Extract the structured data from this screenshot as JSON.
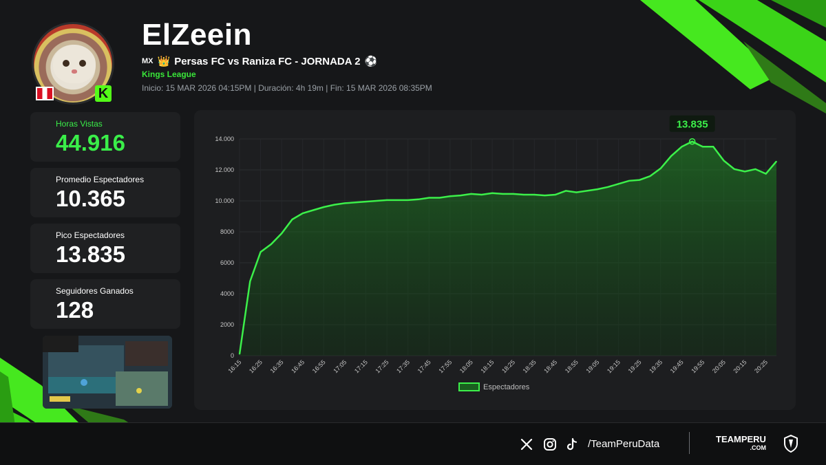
{
  "header": {
    "title": "ElZeein",
    "country_code": "MX",
    "match": "Persas FC vs Raniza FC - JORNADA 2",
    "league": "Kings League",
    "meta": "Inicio: 15 MAR 2026 04:15PM  |  Duración: 4h 19m  |  Fin: 15 MAR 2026 08:35PM",
    "kick_letter": "K"
  },
  "stats": [
    {
      "label": "Horas Vistas",
      "value": "44.916"
    },
    {
      "label": "Promedio Espectadores",
      "value": "10.365"
    },
    {
      "label": "Pico Espectadores",
      "value": "13.835"
    },
    {
      "label": "Seguidores Ganados",
      "value": "128"
    }
  ],
  "colors": {
    "accent": "#39e639",
    "background": "#161719",
    "panel": "#1d1e20",
    "line": "#3cf04a"
  },
  "chart_data": {
    "type": "area",
    "series": [
      {
        "name": "Espectadores"
      }
    ],
    "ylim": [
      0,
      14000
    ],
    "yticks": [
      0,
      2000,
      4000,
      6000,
      8000,
      10000,
      12000,
      14000
    ],
    "ytick_labels": [
      "0",
      "2000",
      "4000",
      "6000",
      "8000",
      "10.000",
      "12.000",
      "14.000"
    ],
    "xtick_labels": [
      "16:15",
      "16:25",
      "16:35",
      "16:45",
      "16:55",
      "17:05",
      "17:15",
      "17:25",
      "17:35",
      "17:45",
      "17:55",
      "18:05",
      "18:15",
      "18:25",
      "18:35",
      "18:45",
      "18:55",
      "19:05",
      "19:15",
      "19:25",
      "19:35",
      "19:45",
      "19:55",
      "20:05",
      "20:15",
      "20:25"
    ],
    "x": [
      "16:15",
      "16:20",
      "16:25",
      "16:30",
      "16:35",
      "16:40",
      "16:45",
      "16:50",
      "16:55",
      "17:00",
      "17:05",
      "17:10",
      "17:15",
      "17:20",
      "17:25",
      "17:30",
      "17:35",
      "17:40",
      "17:45",
      "17:50",
      "17:55",
      "18:00",
      "18:05",
      "18:10",
      "18:15",
      "18:20",
      "18:25",
      "18:30",
      "18:35",
      "18:40",
      "18:45",
      "18:50",
      "18:55",
      "19:00",
      "19:05",
      "19:10",
      "19:15",
      "19:20",
      "19:25",
      "19:30",
      "19:35",
      "19:40",
      "19:45",
      "19:50",
      "19:55",
      "20:00",
      "20:05",
      "20:10",
      "20:15",
      "20:20",
      "20:25",
      "20:30"
    ],
    "values": [
      100,
      4800,
      6700,
      7200,
      7900,
      8800,
      9200,
      9400,
      9600,
      9750,
      9850,
      9900,
      9950,
      10000,
      10050,
      10050,
      10050,
      10100,
      10200,
      10200,
      10300,
      10350,
      10450,
      10400,
      10500,
      10450,
      10450,
      10400,
      10400,
      10350,
      10400,
      10650,
      10550,
      10650,
      10750,
      10900,
      11100,
      11300,
      11350,
      11600,
      12100,
      12900,
      13500,
      13835,
      13500,
      13500,
      12600,
      12050,
      11900,
      12050,
      11750,
      12550
    ],
    "peak_label": "13.835",
    "peak_value": 13835,
    "peak_x": "19:50",
    "legend_label": "Espectadores",
    "legend_position": "bottom-center",
    "grid": true
  },
  "footer": {
    "handle": "/TeamPeruData",
    "brand": "TEAMPERU",
    "brand_sub": ".COM",
    "icons": [
      "x-icon",
      "instagram-icon",
      "tiktok-icon"
    ]
  }
}
